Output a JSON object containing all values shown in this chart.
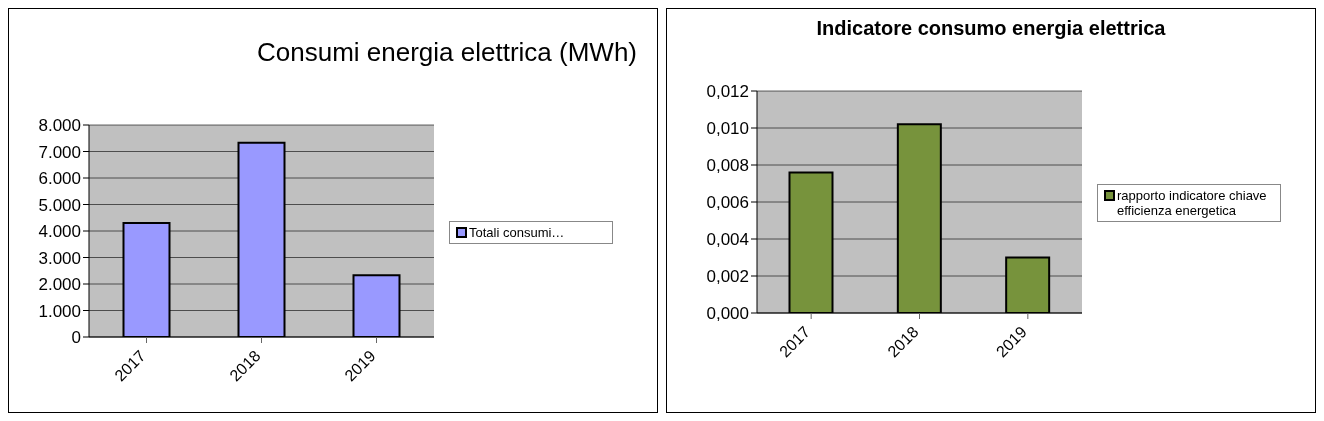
{
  "chart_data": [
    {
      "type": "bar",
      "title": "Consumi energia elettrica (MWh)",
      "categories": [
        "2017",
        "2018",
        "2019"
      ],
      "series": [
        {
          "name": "Totali consumi…",
          "color": "#9999ff",
          "values": [
            4300,
            7330,
            2330
          ]
        }
      ],
      "ylim": [
        0,
        8000
      ],
      "yticks": [
        0,
        {
          "value": 1000,
          "label": "1.000"
        },
        {
          "value": 2000,
          "label": "2.000"
        },
        {
          "value": 3000,
          "label": "3.000"
        },
        {
          "value": 4000,
          "label": "4.000"
        },
        {
          "value": 5000,
          "label": "5.000"
        },
        {
          "value": 6000,
          "label": "6.000"
        },
        {
          "value": 7000,
          "label": "7.000"
        },
        {
          "value": 8000,
          "label": "8.000"
        }
      ],
      "grid": "y",
      "legend": "right"
    },
    {
      "type": "bar",
      "title": "Indicatore consumo energia elettrica",
      "categories": [
        "2017",
        "2018",
        "2019"
      ],
      "series": [
        {
          "name": "rapporto indicatore chiave efficienza energetica",
          "color": "#77933c",
          "values": [
            0.0076,
            0.0102,
            0.003
          ]
        }
      ],
      "ylim": [
        0,
        0.012
      ],
      "yticks": [
        {
          "value": 0,
          "label": "0,000"
        },
        {
          "value": 0.002,
          "label": "0,002"
        },
        {
          "value": 0.004,
          "label": "0,004"
        },
        {
          "value": 0.006,
          "label": "0,006"
        },
        {
          "value": 0.008,
          "label": "0,008"
        },
        {
          "value": 0.01,
          "label": "0,010"
        },
        {
          "value": 0.012,
          "label": "0,012"
        }
      ],
      "grid": "y",
      "legend": "right"
    }
  ]
}
